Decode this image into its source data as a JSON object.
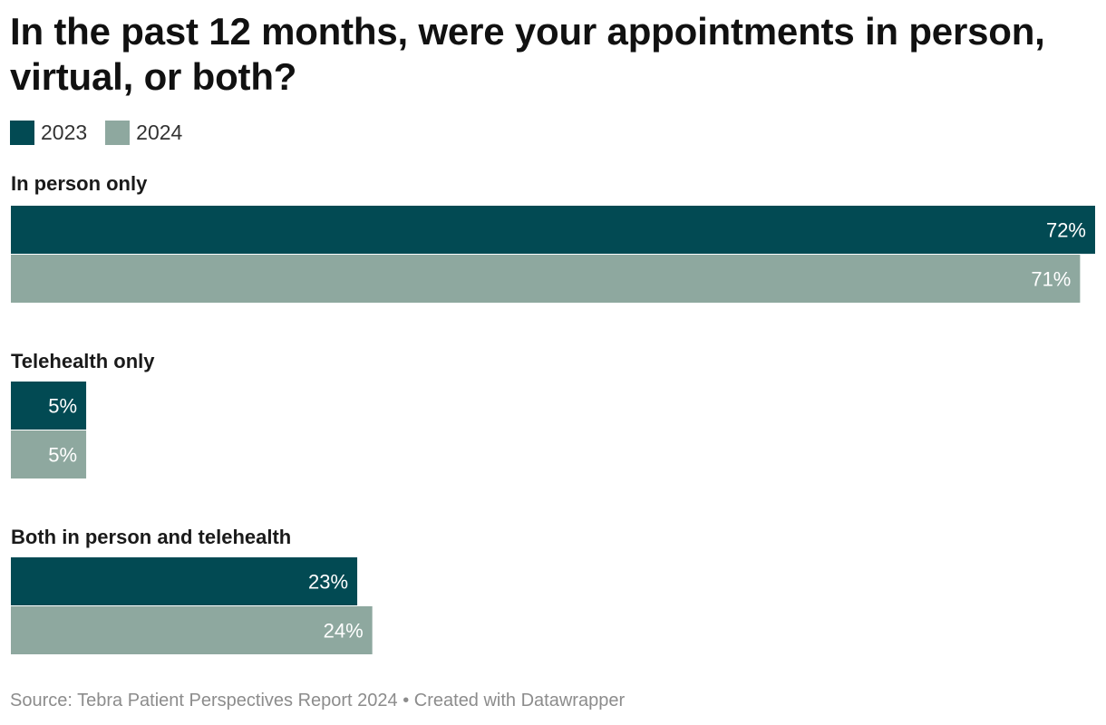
{
  "title": "In the past 12 months, were your appointments in person, virtual, or both?",
  "footer": {
    "source": "Source: Tebra Patient Perspectives Report 2024",
    "separator": " • ",
    "credit": "Created with Datawrapper"
  },
  "colors": {
    "2023": "#024a53",
    "2024": "#8ea89f",
    "bar_label": "#ffffff",
    "category_label": "#1a1a1a"
  },
  "chart_data": {
    "type": "bar",
    "orientation": "horizontal",
    "categories": [
      "In person only",
      "Telehealth only",
      "Both in person and telehealth"
    ],
    "series": [
      {
        "name": "2023",
        "values": [
          72,
          5,
          23
        ]
      },
      {
        "name": "2024",
        "values": [
          71,
          5,
          24
        ]
      }
    ],
    "value_suffix": "%",
    "xlim": [
      0,
      72
    ],
    "legend_position": "top-left",
    "grid": false
  }
}
